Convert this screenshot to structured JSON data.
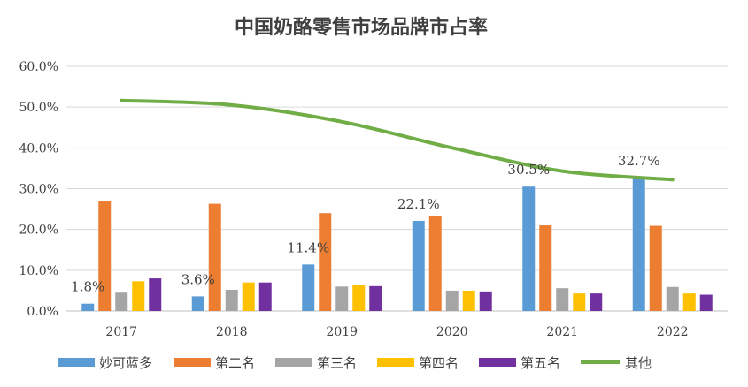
{
  "chart_data": {
    "type": "bar",
    "title": "中国奶酪零售市场品牌市占率",
    "categories": [
      "2017",
      "2018",
      "2019",
      "2020",
      "2021",
      "2022"
    ],
    "ylim": [
      0,
      60
    ],
    "yticks": [
      "0.0%",
      "10.0%",
      "20.0%",
      "30.0%",
      "40.0%",
      "50.0%",
      "60.0%"
    ],
    "grid": true,
    "legend_position": "bottom",
    "series": [
      {
        "name": "妙可蓝多",
        "kind": "bar",
        "color": "#5b9bd5",
        "values": [
          1.8,
          3.6,
          11.4,
          22.1,
          30.5,
          32.7
        ],
        "labels": [
          "1.8%",
          "3.6%",
          "11.4%",
          "22.1%",
          "30.5%",
          "32.7%"
        ]
      },
      {
        "name": "第二名",
        "kind": "bar",
        "color": "#ed7d31",
        "values": [
          27.0,
          26.3,
          24.0,
          23.3,
          21.0,
          20.9
        ]
      },
      {
        "name": "第三名",
        "kind": "bar",
        "color": "#a5a5a5",
        "values": [
          4.5,
          5.2,
          6.0,
          5.0,
          5.6,
          5.9
        ]
      },
      {
        "name": "第四名",
        "kind": "bar",
        "color": "#ffc000",
        "values": [
          7.3,
          7.0,
          6.3,
          5.0,
          4.3,
          4.3
        ]
      },
      {
        "name": "第五名",
        "kind": "bar",
        "color": "#7030a0",
        "values": [
          8.0,
          7.0,
          6.1,
          4.8,
          4.3,
          4.0
        ]
      },
      {
        "name": "其他",
        "kind": "line",
        "color": "#70ad47",
        "values": [
          51.6,
          50.5,
          46.4,
          40.0,
          34.3,
          32.2
        ]
      }
    ]
  }
}
